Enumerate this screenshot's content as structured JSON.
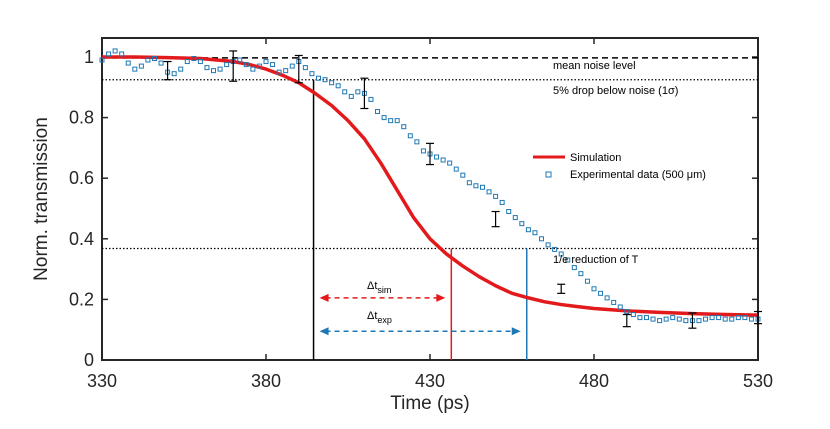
{
  "chart_data": {
    "type": "line",
    "xlabel": "Time (ps)",
    "ylabel": "Norm. transmission",
    "xlim": [
      330,
      530
    ],
    "ylim": [
      0,
      1.05
    ],
    "xticks": [
      330,
      380,
      430,
      480,
      530
    ],
    "yticks": [
      0,
      0.2,
      0.4,
      0.6,
      0.8,
      1
    ],
    "xtick_labels": [
      "330",
      "380",
      "430",
      "480",
      "530"
    ],
    "ytick_labels": [
      "0",
      "0.2",
      "0.4",
      "0.6",
      "0.8",
      "1"
    ],
    "grid": false,
    "legend_position": "right",
    "series": [
      {
        "name": "Simulation",
        "color": "#e31a1c",
        "style": "solid-line",
        "x": [
          330,
          340,
          350,
          360,
          370,
          375,
          380,
          385,
          390,
          395,
          400,
          405,
          410,
          415,
          420,
          425,
          430,
          435,
          440,
          445,
          450,
          455,
          460,
          465,
          470,
          475,
          480,
          490,
          500,
          510,
          520,
          530
        ],
        "y": [
          1.0,
          1.0,
          0.998,
          0.995,
          0.985,
          0.975,
          0.96,
          0.94,
          0.915,
          0.88,
          0.84,
          0.79,
          0.73,
          0.65,
          0.56,
          0.47,
          0.4,
          0.35,
          0.31,
          0.275,
          0.245,
          0.22,
          0.205,
          0.192,
          0.183,
          0.176,
          0.17,
          0.162,
          0.157,
          0.153,
          0.15,
          0.148
        ]
      },
      {
        "name": "Experimental data (500 μm)",
        "legend_text": "Experimental data (500 μm)",
        "color": "#1f78b4",
        "style": "open-square-markers",
        "x": [
          330,
          332,
          334,
          336,
          338,
          340,
          342,
          344,
          346,
          348,
          350,
          352,
          354,
          356,
          358,
          360,
          362,
          364,
          366,
          368,
          370,
          372,
          374,
          376,
          378,
          380,
          382,
          384,
          386,
          388,
          390,
          392,
          394,
          396,
          398,
          400,
          402,
          404,
          406,
          408,
          410,
          412,
          414,
          416,
          418,
          420,
          422,
          424,
          426,
          428,
          430,
          432,
          434,
          436,
          438,
          440,
          442,
          444,
          446,
          448,
          450,
          452,
          454,
          456,
          458,
          460,
          462,
          464,
          466,
          468,
          470,
          472,
          474,
          476,
          478,
          480,
          482,
          484,
          486,
          488,
          490,
          492,
          494,
          496,
          498,
          500,
          502,
          504,
          506,
          508,
          510,
          512,
          514,
          516,
          518,
          520,
          522,
          524,
          526,
          528,
          530
        ],
        "y": [
          0.99,
          1.01,
          1.02,
          1.01,
          0.98,
          0.96,
          0.97,
          0.99,
          0.995,
          0.98,
          0.95,
          0.945,
          0.96,
          0.985,
          0.995,
          0.985,
          0.965,
          0.955,
          0.96,
          0.975,
          0.985,
          0.99,
          0.975,
          0.96,
          0.97,
          0.985,
          0.975,
          0.95,
          0.955,
          0.97,
          0.985,
          0.965,
          0.945,
          0.93,
          0.925,
          0.915,
          0.905,
          0.885,
          0.87,
          0.885,
          0.88,
          0.86,
          0.82,
          0.8,
          0.79,
          0.79,
          0.77,
          0.74,
          0.72,
          0.69,
          0.68,
          0.67,
          0.66,
          0.65,
          0.63,
          0.61,
          0.585,
          0.575,
          0.57,
          0.555,
          0.54,
          0.52,
          0.49,
          0.47,
          0.45,
          0.43,
          0.42,
          0.4,
          0.38,
          0.365,
          0.35,
          0.33,
          0.305,
          0.285,
          0.26,
          0.235,
          0.22,
          0.205,
          0.19,
          0.175,
          0.16,
          0.15,
          0.14,
          0.14,
          0.135,
          0.13,
          0.135,
          0.14,
          0.135,
          0.13,
          0.13,
          0.13,
          0.135,
          0.14,
          0.14,
          0.135,
          0.135,
          0.14,
          0.14,
          0.135,
          0.135
        ],
        "error_bars": [
          {
            "x": 350,
            "y": 0.955,
            "err": 0.03
          },
          {
            "x": 370,
            "y": 0.97,
            "err": 0.05
          },
          {
            "x": 390,
            "y": 0.96,
            "err": 0.045
          },
          {
            "x": 410,
            "y": 0.88,
            "err": 0.05
          },
          {
            "x": 430,
            "y": 0.68,
            "err": 0.035
          },
          {
            "x": 450,
            "y": 0.465,
            "err": 0.025
          },
          {
            "x": 470,
            "y": 0.235,
            "err": 0.015
          },
          {
            "x": 490,
            "y": 0.13,
            "err": 0.02
          },
          {
            "x": 510,
            "y": 0.13,
            "err": 0.025
          },
          {
            "x": 530,
            "y": 0.14,
            "err": 0.02
          }
        ]
      }
    ],
    "reference_lines": {
      "mean_noise": {
        "y": 0.997,
        "label": "mean noise level",
        "style": "dashed"
      },
      "five_percent": {
        "y": 0.925,
        "label": "5% drop below noise (1σ)",
        "style": "dotted"
      },
      "one_over_e": {
        "y": 0.368,
        "label": "1/e reduction of T",
        "style": "dotted"
      }
    },
    "vertical_markers": {
      "start": {
        "x": 394.5,
        "color": "#000000"
      },
      "sim": {
        "x": 436.5,
        "color": "#e31a1c"
      },
      "exp": {
        "x": 459.5,
        "color": "#1f78b4"
      }
    },
    "annotations": {
      "delta_sim": {
        "label": "Δt",
        "sub": "sim",
        "y": 0.205,
        "from": 394.5,
        "to": 436.5,
        "color": "#e31a1c"
      },
      "delta_exp": {
        "label": "Δt",
        "sub": "exp",
        "y": 0.095,
        "from": 394.5,
        "to": 459.5,
        "color": "#1f78b4"
      }
    }
  }
}
